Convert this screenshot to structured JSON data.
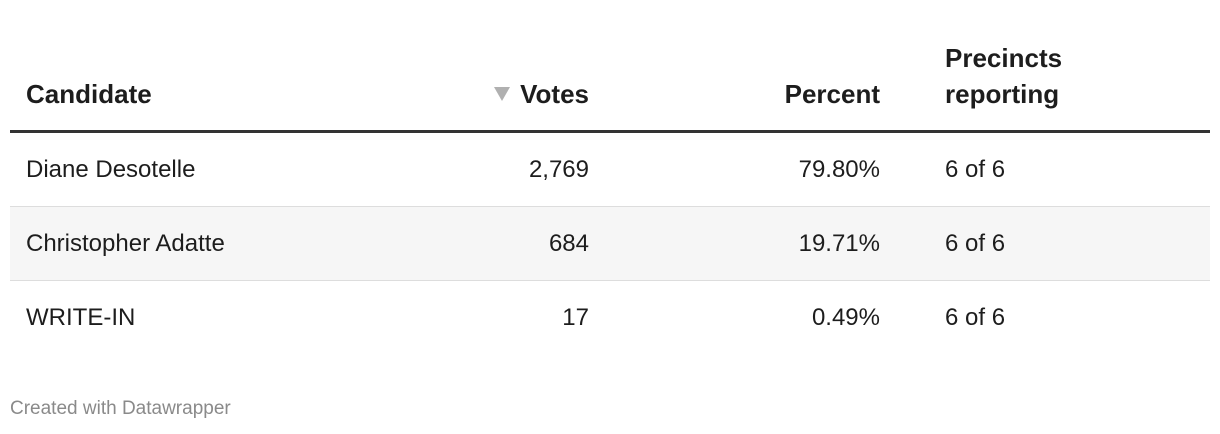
{
  "table": {
    "headers": [
      "Candidate",
      "Votes",
      "Percent",
      "Precincts reporting"
    ],
    "rows": [
      [
        "Diane Desotelle",
        "2,769",
        "79.80%",
        "6 of 6"
      ],
      [
        "Christopher Adatte",
        "684",
        "19.71%",
        "6 of 6"
      ],
      [
        "WRITE-IN",
        "17",
        "0.49%",
        "6 of 6"
      ]
    ]
  },
  "footer": "Created with Datawrapper"
}
